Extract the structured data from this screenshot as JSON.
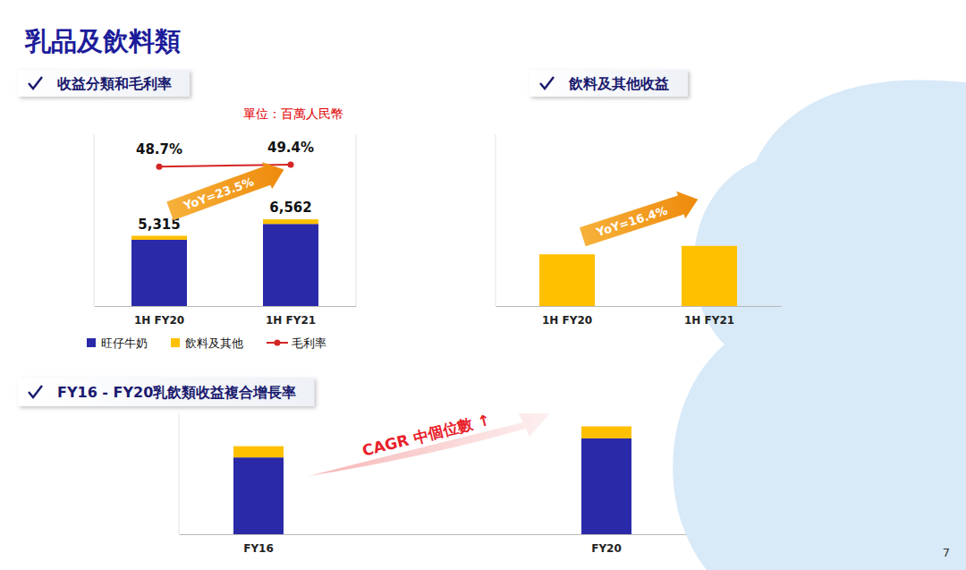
{
  "page": {
    "title": "乳品及飲料類",
    "number": 7
  },
  "chart_data": [
    {
      "type": "bar",
      "title": "收益分類和毛利率",
      "subtitle": "單位：百萬人民幣",
      "categories": [
        "1H FY20",
        "1H FY21"
      ],
      "stacked": true,
      "series": [
        {
          "name": "旺仔牛奶",
          "color": "#2a2aa8",
          "values": [
            5014,
            6212
          ]
        },
        {
          "name": "飲料及其他",
          "color": "#ffc000",
          "values": [
            301,
            350
          ]
        },
        {
          "name": "毛利率",
          "type": "line",
          "axis": "y2",
          "color": "#d42525",
          "marker": "circle",
          "values": [
            48.7,
            49.4
          ],
          "value_labels": [
            "48.7%",
            "49.4%"
          ]
        }
      ],
      "totals": [
        5315,
        6562
      ],
      "total_labels": [
        "5,315",
        "6,562"
      ],
      "annotations": [
        "YoY=23.5%"
      ],
      "ylim": [
        0,
        13000
      ],
      "y2lim": [
        0,
        60
      ],
      "data_labels": true,
      "tick_labels": "x",
      "legend": "bottom"
    },
    {
      "type": "bar",
      "title": "飲料及其他收益",
      "categories": [
        "1H FY20",
        "1H FY21"
      ],
      "values": [
        301,
        350
      ],
      "color": "#ffc000",
      "annotations": [
        "YoY=16.4%"
      ],
      "ylim": [
        0,
        1000
      ],
      "tick_labels": "x"
    },
    {
      "type": "bar",
      "title": "FY16 - FY20乳飲類收益複合增長率",
      "categories": [
        "FY16",
        "FY20"
      ],
      "stacked": true,
      "series": [
        {
          "name": "旺仔牛奶",
          "color": "#2a2aa8",
          "values": [
            8900,
            11100
          ]
        },
        {
          "name": "飲料及其他",
          "color": "#ffc000",
          "values": [
            1300,
            1400
          ]
        }
      ],
      "annotations": [
        "CAGR 中個位數 ↑"
      ],
      "ylim": [
        0,
        14000
      ],
      "tick_labels": "x"
    }
  ]
}
